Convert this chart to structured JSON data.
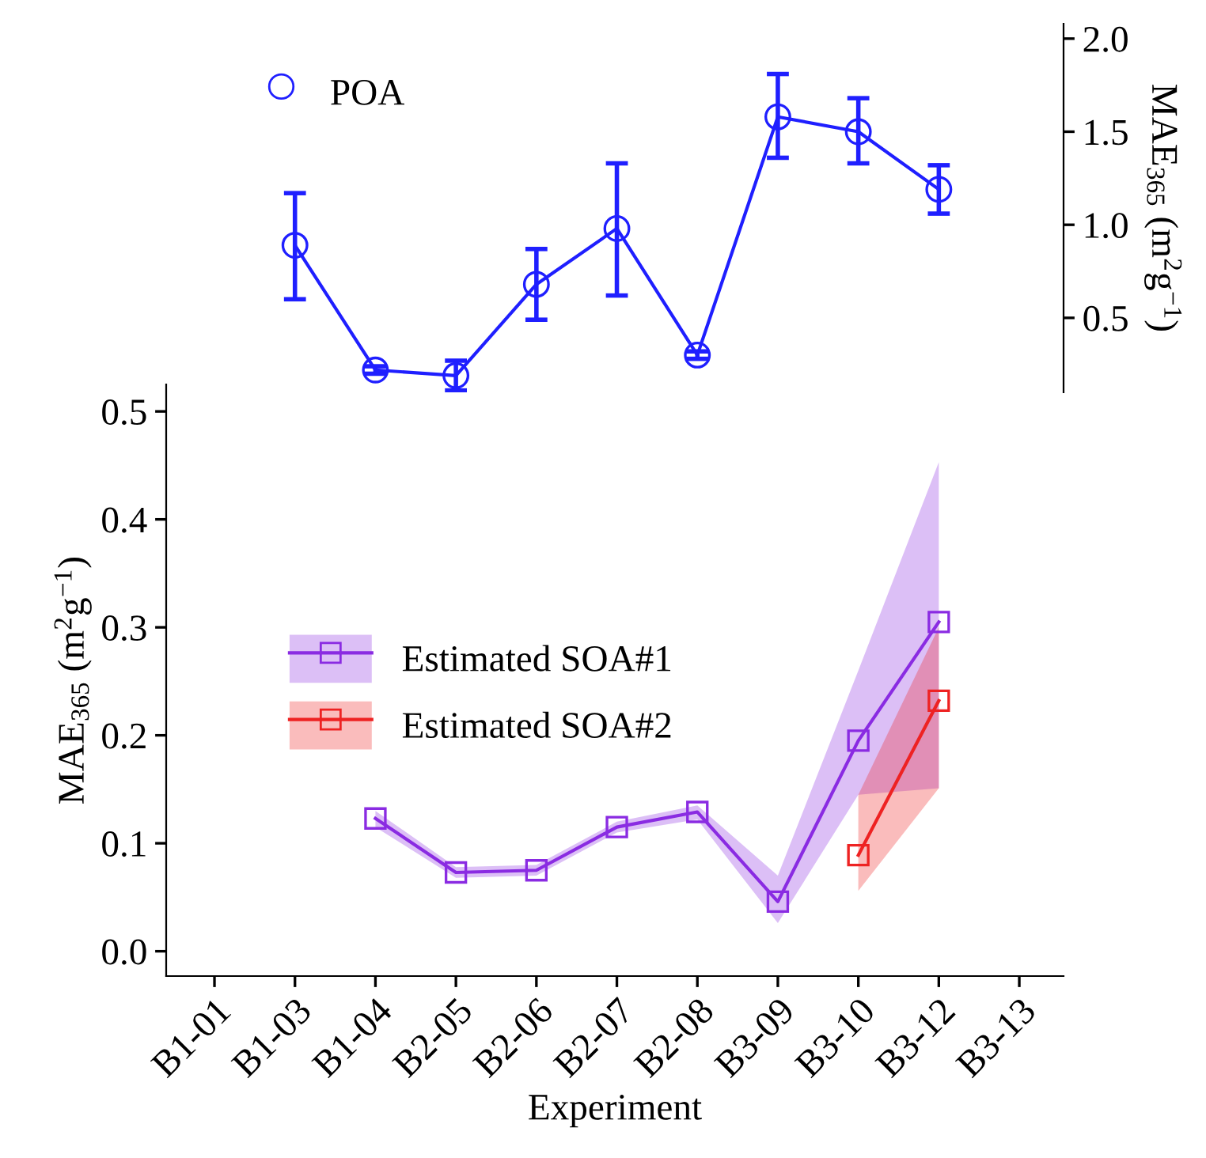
{
  "chart_data": [
    {
      "type": "line",
      "categories": [
        null,
        null,
        null,
        null,
        null,
        null,
        null,
        null,
        null,
        null,
        null
      ],
      "ylabel": "MAE$_{365}$ (m$^{2}$g$^{−1}$)",
      "ylim": [
        0.1,
        2.08
      ],
      "yticks": [
        0.5,
        {
          "value": 1.0,
          "label": "1.0"
        },
        1.5,
        {
          "value": 2.0,
          "label": "2.0"
        }
      ],
      "tick_labels": "y",
      "legend": "top left",
      "marker": "circle",
      "grid": false,
      "series": [
        {
          "name": "POA",
          "color": "#1f1fff",
          "values": [
            null,
            0.89,
            0.22,
            0.19,
            0.68,
            0.98,
            0.3,
            1.58,
            1.5,
            1.19,
            null
          ],
          "errors": [
            null,
            [
              0.6,
              1.17
            ],
            [
              0.2,
              0.24
            ],
            [
              0.11,
              0.27
            ],
            [
              0.49,
              0.87
            ],
            [
              0.62,
              1.33
            ],
            [
              0.28,
              0.32
            ],
            [
              1.36,
              1.81
            ],
            [
              1.33,
              1.68
            ],
            [
              1.06,
              1.32
            ],
            null
          ]
        }
      ]
    },
    {
      "type": "line",
      "categories": [
        "B1-01",
        "B1-03",
        "B1-04",
        "B2-05",
        "B2-06",
        "B2-07",
        "B2-08",
        "B3-09",
        "B3-10",
        "B3-12",
        "B3-13"
      ],
      "xlabel": "Experiment",
      "ylabel": "MAE$_{365}$ (m$^{2}$g$^{−1}$)",
      "ylim": [
        -0.023,
        0.525
      ],
      "yticks": [
        {
          "value": 0.0,
          "label": "0.0"
        },
        0.1,
        0.2,
        0.3,
        0.4,
        0.5
      ],
      "legend": "center",
      "marker": "square",
      "grid": false,
      "series": [
        {
          "name": "Estimated SOA#1",
          "color": "#8a2be2",
          "values": [
            null,
            null,
            0.123,
            0.073,
            0.075,
            0.115,
            0.129,
            0.046,
            0.195,
            0.305,
            null
          ],
          "lower": [
            null,
            null,
            0.115,
            0.068,
            0.07,
            0.11,
            0.122,
            0.026,
            0.145,
            0.151,
            null
          ],
          "upper": [
            null,
            null,
            0.13,
            0.078,
            0.08,
            0.12,
            0.135,
            0.07,
            0.26,
            0.453,
            null
          ]
        },
        {
          "name": "Estimated SOA#2",
          "color": "#ee2222",
          "values": [
            null,
            null,
            null,
            null,
            null,
            null,
            null,
            null,
            0.089,
            0.232,
            null
          ],
          "lower": [
            null,
            null,
            null,
            null,
            null,
            null,
            null,
            null,
            0.056,
            0.151,
            null
          ],
          "upper": [
            null,
            null,
            null,
            null,
            null,
            null,
            null,
            null,
            0.145,
            0.3,
            null
          ]
        }
      ]
    }
  ]
}
